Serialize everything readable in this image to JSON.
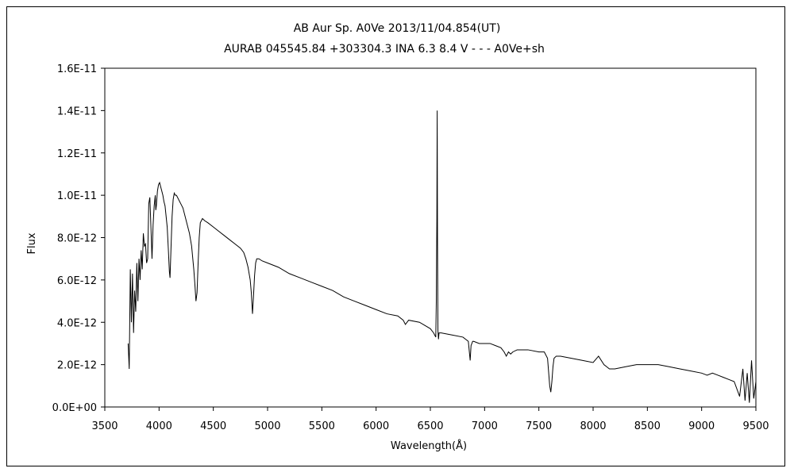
{
  "chart_data": {
    "type": "line",
    "title_line1": "AB Aur    Sp. A0Ve    2013/11/04.854(UT)",
    "title_line2": "AURAB 045545.84 +303304.3 INA 6.3 8.4 V - - - A0Ve+sh",
    "xlabel": "Wavelength(Å)",
    "ylabel": "Flux",
    "xlim": [
      3500,
      9500
    ],
    "ylim": [
      0,
      1.6e-11
    ],
    "x_ticks": [
      "3500",
      "4000",
      "4500",
      "5000",
      "5500",
      "6000",
      "6500",
      "7000",
      "7500",
      "8000",
      "8500",
      "9000",
      "9500"
    ],
    "y_ticks": [
      "0.0E+00",
      "2.0E-12",
      "4.0E-12",
      "6.0E-12",
      "8.0E-12",
      "1.0E-11",
      "1.2E-11",
      "1.4E-11",
      "1.6E-11"
    ],
    "grid": false,
    "legend": false,
    "series": [
      {
        "x": [
          3715,
          3725,
          3735,
          3745,
          3755,
          3765,
          3775,
          3785,
          3795,
          3805,
          3815,
          3825,
          3835,
          3845,
          3855,
          3865,
          3875,
          3885,
          3895,
          3905,
          3915,
          3925,
          3935,
          3945,
          3955,
          3965,
          3970,
          3975,
          3985,
          3995,
          4005,
          4015,
          4025,
          4035,
          4045,
          4055,
          4065,
          4075,
          4085,
          4095,
          4101,
          4110,
          4120,
          4130,
          4140,
          4150,
          4160,
          4170,
          4180,
          4190,
          4200,
          4220,
          4240,
          4260,
          4280,
          4300,
          4320,
          4330,
          4340,
          4350,
          4360,
          4370,
          4380,
          4400,
          4420,
          4450,
          4500,
          4550,
          4600,
          4650,
          4700,
          4750,
          4780,
          4800,
          4820,
          4840,
          4850,
          4861,
          4870,
          4880,
          4890,
          4900,
          4920,
          4950,
          5000,
          5100,
          5200,
          5300,
          5400,
          5500,
          5600,
          5700,
          5800,
          5900,
          6000,
          6100,
          6200,
          6250,
          6270,
          6300,
          6400,
          6500,
          6530,
          6550,
          6555,
          6560,
          6563,
          6566,
          6570,
          6575,
          6580,
          6600,
          6700,
          6800,
          6850,
          6867,
          6875,
          6890,
          6900,
          6950,
          7000,
          7050,
          7100,
          7150,
          7180,
          7200,
          7220,
          7240,
          7260,
          7300,
          7400,
          7500,
          7550,
          7580,
          7600,
          7610,
          7620,
          7630,
          7640,
          7660,
          7700,
          7800,
          7900,
          8000,
          8050,
          8100,
          8150,
          8200,
          8300,
          8400,
          8500,
          8600,
          8700,
          8800,
          8900,
          9000,
          9050,
          9100,
          9150,
          9200,
          9250,
          9300,
          9350,
          9380,
          9400,
          9420,
          9440,
          9460,
          9480,
          9500
        ],
        "y": [
          3e-12,
          1.8e-12,
          6.5e-12,
          4e-12,
          6.3e-12,
          3.5e-12,
          5.5e-12,
          4.5e-12,
          6.8e-12,
          5e-12,
          7e-12,
          6e-12,
          7.4e-12,
          6.5e-12,
          8.2e-12,
          7.6e-12,
          7.7e-12,
          6.8e-12,
          7e-12,
          9.6e-12,
          9.9e-12,
          8.5e-12,
          7e-12,
          8.6e-12,
          9.5e-12,
          1e-11,
          9.3e-12,
          9.5e-12,
          1.02e-11,
          1.05e-11,
          1.06e-11,
          1.04e-11,
          1.02e-11,
          1e-11,
          9.7e-12,
          9.5e-12,
          9e-12,
          8.5e-12,
          7.5e-12,
          6.4e-12,
          6.1e-12,
          7.5e-12,
          9e-12,
          9.8e-12,
          1.01e-11,
          1e-11,
          1e-11,
          9.9e-12,
          9.8e-12,
          9.7e-12,
          9.6e-12,
          9.4e-12,
          9e-12,
          8.6e-12,
          8.2e-12,
          7.6e-12,
          6.5e-12,
          5.8e-12,
          5e-12,
          5.4e-12,
          6.8e-12,
          8e-12,
          8.7e-12,
          8.9e-12,
          8.8e-12,
          8.7e-12,
          8.5e-12,
          8.3e-12,
          8.1e-12,
          7.9e-12,
          7.7e-12,
          7.5e-12,
          7.3e-12,
          7e-12,
          6.6e-12,
          6e-12,
          5.4e-12,
          4.4e-12,
          5.2e-12,
          6.2e-12,
          6.8e-12,
          7e-12,
          7e-12,
          6.9e-12,
          6.8e-12,
          6.6e-12,
          6.3e-12,
          6.1e-12,
          5.9e-12,
          5.7e-12,
          5.5e-12,
          5.2e-12,
          5e-12,
          4.8e-12,
          4.6e-12,
          4.4e-12,
          4.3e-12,
          4.1e-12,
          3.9e-12,
          4.1e-12,
          4e-12,
          3.7e-12,
          3.5e-12,
          3.3e-12,
          5e-12,
          8.9e-12,
          1.4e-11,
          8e-12,
          3.6e-12,
          3.2e-12,
          3.5e-12,
          3.5e-12,
          3.4e-12,
          3.3e-12,
          3.1e-12,
          2.2e-12,
          2.9e-12,
          3.1e-12,
          3.1e-12,
          3e-12,
          3e-12,
          3e-12,
          2.9e-12,
          2.8e-12,
          2.6e-12,
          2.4e-12,
          2.6e-12,
          2.5e-12,
          2.6e-12,
          2.7e-12,
          2.7e-12,
          2.6e-12,
          2.6e-12,
          2.3e-12,
          1e-12,
          7e-13,
          1.2e-12,
          1.9e-12,
          2.3e-12,
          2.4e-12,
          2.4e-12,
          2.3e-12,
          2.2e-12,
          2.1e-12,
          2.4e-12,
          2e-12,
          1.8e-12,
          1.8e-12,
          1.9e-12,
          2e-12,
          2e-12,
          2e-12,
          1.9e-12,
          1.8e-12,
          1.7e-12,
          1.6e-12,
          1.5e-12,
          1.6e-12,
          1.5e-12,
          1.4e-12,
          1.3e-12,
          1.2e-12,
          5e-13,
          1.8e-12,
          3e-13,
          1.6e-12,
          2e-13,
          2.2e-12,
          4e-13,
          1.2e-12
        ]
      }
    ]
  }
}
